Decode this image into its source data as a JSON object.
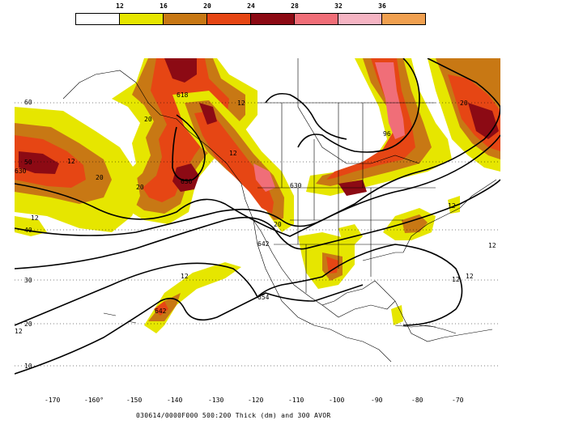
{
  "colorbar": {
    "labels": [
      "12",
      "16",
      "20",
      "24",
      "28",
      "32",
      "36"
    ],
    "colors": [
      "#ffffff",
      "#e6e600",
      "#c87814",
      "#e64614",
      "#8c0a14",
      "#f06e78",
      "#f5b4c3",
      "#f0a050"
    ]
  },
  "map_colors": {
    "yellow": "#e6e600",
    "orange": "#c87814",
    "red": "#e64614",
    "darkred": "#8c0a14",
    "pink": "#f06e78",
    "lightpink": "#f5b4c3"
  },
  "axes": {
    "lon_labels": [
      "-170",
      "-160°",
      "-150",
      "-140",
      "-130",
      "-120",
      "-110",
      "-100",
      "-90",
      "-80",
      "-70"
    ],
    "lat_labels": [
      "60",
      "50",
      "40",
      "30",
      "20",
      "10"
    ]
  },
  "contour_labels": [
    {
      "text": "618"
    },
    {
      "text": "630"
    },
    {
      "text": "630"
    },
    {
      "text": "630"
    },
    {
      "text": "642"
    },
    {
      "text": "642"
    },
    {
      "text": "654"
    },
    {
      "text": "96"
    }
  ],
  "vorticity_labels": [
    {
      "text": "12"
    },
    {
      "text": "12"
    },
    {
      "text": "12"
    },
    {
      "text": "12"
    },
    {
      "text": "12"
    },
    {
      "text": "12"
    },
    {
      "text": "12"
    },
    {
      "text": "12"
    },
    {
      "text": "12"
    },
    {
      "text": "12"
    },
    {
      "text": "20"
    },
    {
      "text": "20"
    },
    {
      "text": "20"
    },
    {
      "text": "20"
    },
    {
      "text": "20"
    }
  ],
  "caption": "030614/0000F000 500:200 Thick (dm) and 300 AVOR"
}
